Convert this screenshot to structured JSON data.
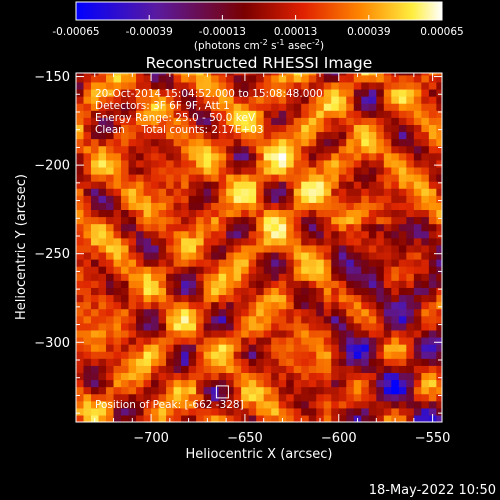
{
  "colorbar": {
    "ticks": [
      "-0.00065",
      "-0.00039",
      "-0.00013",
      "0.00013",
      "0.00039",
      "0.00065"
    ],
    "unit_main": "(photons cm",
    "unit_sup1": "-2",
    "unit_mid": " s",
    "unit_sup2": "-1",
    "unit_end": " asec",
    "unit_sup3": "-2",
    "unit_close": ")"
  },
  "header": {
    "title": "Reconstructed RHESSI Image"
  },
  "annotations": {
    "time_range": "20-Oct-2014 15:04:52.000 to 15:08:48.000",
    "detectors": "Detectors: 3F 6F 9F, Att 1",
    "energy_range": "Energy Range: 25.0 - 50.0 keV",
    "method": "Clean     Total counts: 2.17E+03",
    "peak_label": "Position of Peak: [",
    "peak_x": "-662",
    "peak_y": "-328",
    "peak_close": "]"
  },
  "footer": {
    "timestamp": "18-May-2022 10:50"
  },
  "chart_data": {
    "type": "heatmap",
    "title": "Reconstructed RHESSI Image",
    "xlabel": "Heliocentric X (arcsec)",
    "ylabel": "Heliocentric Y (arcsec)",
    "xlim": [
      -740,
      -545
    ],
    "ylim": [
      -345,
      -148
    ],
    "x_ticks": [
      -700,
      -650,
      -600,
      -550
    ],
    "y_ticks": [
      -300,
      -250,
      -200,
      -150
    ],
    "x_tick_labels": [
      "−700",
      "−650",
      "−600",
      "−550"
    ],
    "y_tick_labels": [
      "−300",
      "−250",
      "−200",
      "−150"
    ],
    "colorbar_range": [
      -0.00065,
      0.00065
    ],
    "colormap": [
      "#0000ff",
      "#5a1aa0",
      "#8a0a0a",
      "#e8300a",
      "#ff9a00",
      "#ffff80",
      "#ffffff"
    ],
    "pixel_size_arcsec": 4,
    "peak_position": [
      -662,
      -328
    ],
    "image_values_note_shown": false
  }
}
